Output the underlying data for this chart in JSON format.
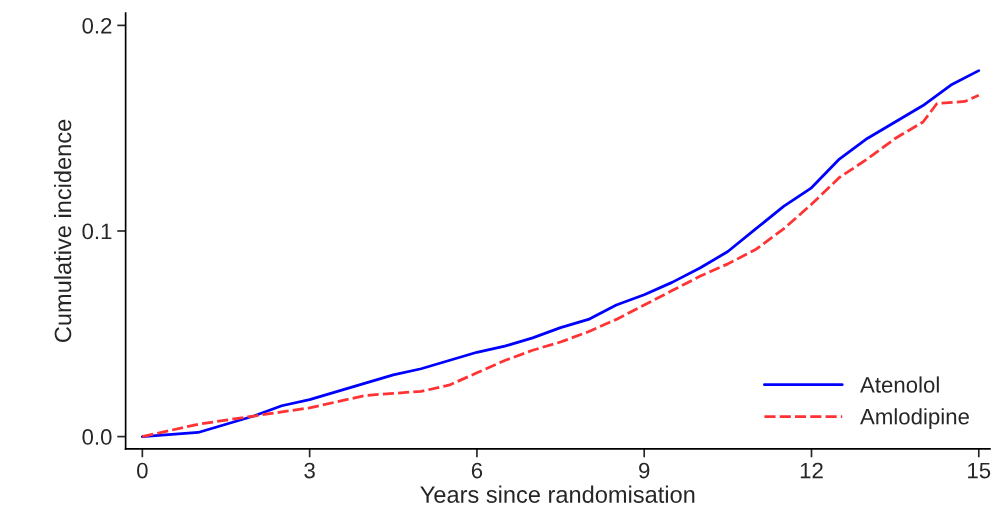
{
  "chart_data": {
    "type": "line",
    "xlabel": "Years since randomisation",
    "ylabel": "Cumulative incidence",
    "xlim": [
      -0.3,
      15.2
    ],
    "ylim": [
      -0.006,
      0.206
    ],
    "xticks": [
      0,
      3,
      6,
      9,
      12,
      15
    ],
    "yticks": [
      {
        "value": 0,
        "label": "0.0"
      },
      {
        "value": 0.1,
        "label": "0.1"
      },
      {
        "value": 0.2,
        "label": "0.2"
      }
    ],
    "grid": false,
    "legend": "bottom right",
    "marker": "none",
    "series": [
      {
        "name": "Atenolol",
        "color": "#0000ff",
        "line_style": "solid",
        "x": [
          0,
          1,
          1.5,
          2,
          2.5,
          3,
          3.5,
          4,
          4.5,
          5,
          5.5,
          6,
          6.5,
          7,
          7.5,
          8,
          8.5,
          9,
          9.5,
          10,
          10.5,
          11,
          11.5,
          12,
          12.5,
          13,
          13.5,
          14,
          14.5,
          15
        ],
        "values": [
          0,
          0.002,
          0.006,
          0.01,
          0.015,
          0.018,
          0.022,
          0.026,
          0.03,
          0.033,
          0.037,
          0.041,
          0.044,
          0.048,
          0.053,
          0.057,
          0.064,
          0.069,
          0.075,
          0.082,
          0.09,
          0.101,
          0.112,
          0.121,
          0.135,
          0.145,
          0.153,
          0.161,
          0.171,
          0.178
        ]
      },
      {
        "name": "Amlodipine",
        "color": "#ff3333",
        "line_style": "dashed",
        "x": [
          0,
          0.5,
          1,
          1.5,
          2,
          2.5,
          3,
          3.5,
          4,
          4.5,
          5,
          5.5,
          6,
          6.5,
          7,
          7.5,
          8,
          8.5,
          9,
          9.5,
          10,
          10.5,
          11,
          11.5,
          12,
          12.5,
          13,
          13.5,
          14,
          14.25,
          14.75,
          15
        ],
        "values": [
          0,
          0.003,
          0.006,
          0.008,
          0.01,
          0.012,
          0.014,
          0.017,
          0.02,
          0.021,
          0.022,
          0.025,
          0.031,
          0.037,
          0.042,
          0.046,
          0.051,
          0.057,
          0.064,
          0.071,
          0.078,
          0.084,
          0.091,
          0.101,
          0.113,
          0.126,
          0.135,
          0.145,
          0.153,
          0.162,
          0.163,
          0.166
        ]
      }
    ]
  }
}
